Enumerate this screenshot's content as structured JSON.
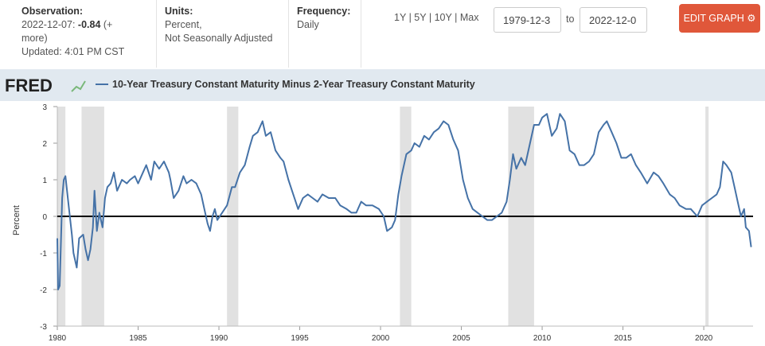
{
  "header": {
    "observation": {
      "label": "Observation:",
      "date": "2022-12-07:",
      "value": "-0.84",
      "more": "(+ more)",
      "updated": "Updated: 4:01 PM CST"
    },
    "units": {
      "label": "Units:",
      "lines": [
        "Percent,",
        "Not Seasonally Adjusted"
      ]
    },
    "frequency": {
      "label": "Frequency:",
      "value": "Daily"
    },
    "ranges": [
      "1Y",
      "5Y",
      "10Y",
      "Max"
    ],
    "range_separator": "|",
    "start_date": "1979-12-3",
    "to": "to",
    "end_date": "2022-12-0",
    "edit_button": "EDIT GRAPH"
  },
  "logo": "FRED",
  "chart_data": {
    "type": "line",
    "ylabel": "Percent",
    "xlim": [
      1980,
      2023.05
    ],
    "xticks": [
      1980,
      1985,
      1990,
      1995,
      2000,
      2005,
      2010,
      2015,
      2020
    ],
    "ylim": [
      -3,
      3
    ],
    "yticks": [
      -3,
      -2,
      -1,
      0,
      1,
      2,
      3
    ],
    "hline": 0,
    "shaded_ranges": [
      [
        1980.0,
        1980.5
      ],
      [
        1981.5,
        1982.9
      ],
      [
        1990.5,
        1991.2
      ],
      [
        2001.2,
        2001.9
      ],
      [
        2007.9,
        2009.5
      ],
      [
        2020.1,
        2020.3
      ]
    ],
    "shade_color": "#e1e1e1",
    "x": [
      1980.0,
      1980.05,
      1980.15,
      1980.3,
      1980.4,
      1980.5,
      1980.7,
      1980.9,
      1981.0,
      1981.2,
      1981.35,
      1981.6,
      1981.75,
      1981.9,
      1982.05,
      1982.2,
      1982.3,
      1982.45,
      1982.6,
      1982.8,
      1982.95,
      1983.1,
      1983.3,
      1983.5,
      1983.7,
      1984.0,
      1984.3,
      1984.5,
      1984.8,
      1985.0,
      1985.3,
      1985.5,
      1985.8,
      1986.0,
      1986.3,
      1986.6,
      1986.9,
      1987.0,
      1987.2,
      1987.5,
      1987.8,
      1988.0,
      1988.3,
      1988.6,
      1988.9,
      1989.1,
      1989.3,
      1989.45,
      1989.6,
      1989.75,
      1989.9,
      1990.2,
      1990.5,
      1990.8,
      1991.0,
      1991.3,
      1991.6,
      1991.9,
      1992.1,
      1992.4,
      1992.7,
      1992.9,
      1993.2,
      1993.5,
      1993.8,
      1994.0,
      1994.3,
      1994.6,
      1994.9,
      1995.2,
      1995.5,
      1995.8,
      1996.1,
      1996.4,
      1996.8,
      1997.2,
      1997.5,
      1997.9,
      1998.2,
      1998.5,
      1998.8,
      1999.1,
      1999.5,
      1999.9,
      2000.2,
      2000.4,
      2000.7,
      2000.9,
      2001.1,
      2001.3,
      2001.6,
      2001.9,
      2002.1,
      2002.4,
      2002.7,
      2003.0,
      2003.3,
      2003.6,
      2003.9,
      2004.2,
      2004.5,
      2004.8,
      2005.1,
      2005.4,
      2005.7,
      2006.0,
      2006.3,
      2006.6,
      2006.9,
      2007.2,
      2007.5,
      2007.8,
      2008.0,
      2008.2,
      2008.4,
      2008.7,
      2008.95,
      2009.2,
      2009.5,
      2009.8,
      2010.0,
      2010.3,
      2010.6,
      2010.9,
      2011.1,
      2011.4,
      2011.7,
      2012.0,
      2012.3,
      2012.6,
      2012.9,
      2013.2,
      2013.5,
      2013.8,
      2014.0,
      2014.3,
      2014.6,
      2014.9,
      2015.2,
      2015.5,
      2015.8,
      2016.1,
      2016.5,
      2016.9,
      2017.2,
      2017.5,
      2017.9,
      2018.2,
      2018.5,
      2018.9,
      2019.2,
      2019.6,
      2019.9,
      2020.2,
      2020.5,
      2020.8,
      2021.0,
      2021.2,
      2021.4,
      2021.7,
      2021.9,
      2022.1,
      2022.3,
      2022.5,
      2022.6,
      2022.8,
      2022.93
    ],
    "series": [
      {
        "name": "10-Year Treasury Constant Maturity Minus 2-Year Treasury Constant Maturity",
        "color": "#4572a7",
        "values": [
          -0.6,
          -2.0,
          -1.9,
          0.5,
          1.0,
          1.1,
          0.3,
          -0.5,
          -1.0,
          -1.4,
          -0.6,
          -0.5,
          -0.9,
          -1.2,
          -0.9,
          -0.3,
          0.7,
          -0.4,
          0.1,
          -0.3,
          0.5,
          0.8,
          0.9,
          1.2,
          0.7,
          1.0,
          0.9,
          1.0,
          1.1,
          0.9,
          1.2,
          1.4,
          1.0,
          1.5,
          1.3,
          1.5,
          1.2,
          1.0,
          0.5,
          0.7,
          1.1,
          0.9,
          1.0,
          0.9,
          0.6,
          0.2,
          -0.2,
          -0.4,
          0.0,
          0.2,
          -0.1,
          0.1,
          0.3,
          0.8,
          0.8,
          1.2,
          1.4,
          1.9,
          2.2,
          2.3,
          2.6,
          2.2,
          2.3,
          1.8,
          1.6,
          1.5,
          1.0,
          0.6,
          0.2,
          0.5,
          0.6,
          0.5,
          0.4,
          0.6,
          0.5,
          0.5,
          0.3,
          0.2,
          0.1,
          0.1,
          0.4,
          0.3,
          0.3,
          0.2,
          0.0,
          -0.4,
          -0.3,
          -0.1,
          0.6,
          1.1,
          1.7,
          1.8,
          2.0,
          1.9,
          2.2,
          2.1,
          2.3,
          2.4,
          2.6,
          2.5,
          2.1,
          1.8,
          1.0,
          0.5,
          0.2,
          0.1,
          0.0,
          -0.1,
          -0.1,
          0.0,
          0.1,
          0.4,
          1.0,
          1.7,
          1.3,
          1.6,
          1.4,
          1.9,
          2.5,
          2.5,
          2.7,
          2.8,
          2.2,
          2.4,
          2.8,
          2.6,
          1.8,
          1.7,
          1.4,
          1.4,
          1.5,
          1.7,
          2.3,
          2.5,
          2.6,
          2.3,
          2.0,
          1.6,
          1.6,
          1.7,
          1.4,
          1.2,
          0.9,
          1.2,
          1.1,
          0.9,
          0.6,
          0.5,
          0.3,
          0.2,
          0.2,
          0.0,
          0.3,
          0.4,
          0.5,
          0.6,
          0.8,
          1.5,
          1.4,
          1.2,
          0.8,
          0.4,
          0.0,
          0.2,
          -0.3,
          -0.4,
          -0.84
        ]
      }
    ]
  }
}
